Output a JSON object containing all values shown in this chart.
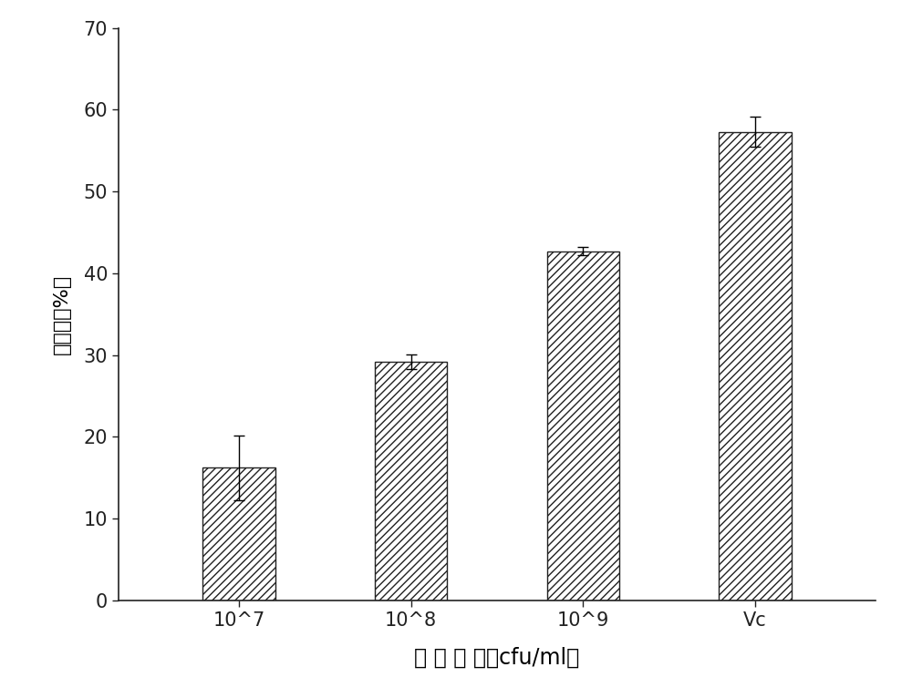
{
  "categories": [
    "10^7",
    "10^8",
    "10^9",
    "Vc"
  ],
  "values": [
    16.2,
    29.2,
    42.7,
    57.3
  ],
  "errors": [
    4.0,
    0.9,
    0.5,
    1.8
  ],
  "bar_color": "white",
  "bar_edgecolor": "#222222",
  "hatch": "////",
  "title": "",
  "xlabel": "菌 株 浓 度（cfu/ml）",
  "ylabel": "消除率（%）",
  "ylim": [
    0,
    70
  ],
  "yticks": [
    0,
    10,
    20,
    30,
    40,
    50,
    60,
    70
  ],
  "bar_width": 0.42,
  "xlabel_fontsize": 17,
  "ylabel_fontsize": 16,
  "tick_fontsize": 15,
  "background_color": "#ffffff",
  "linewidth": 1.0,
  "capsize": 4
}
